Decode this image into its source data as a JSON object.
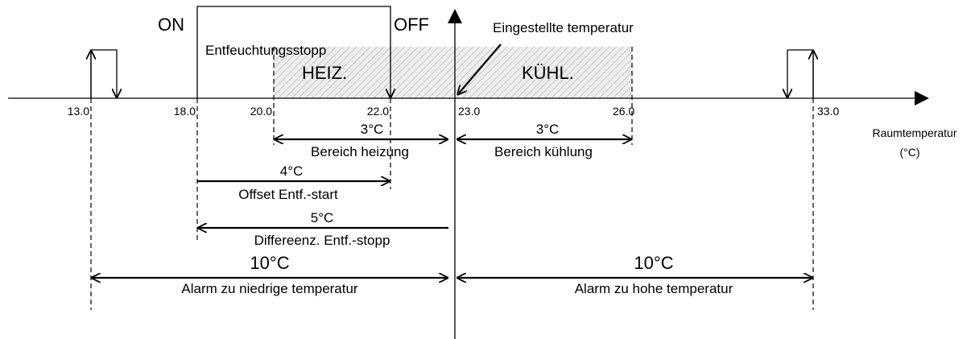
{
  "switch": {
    "on": "ON",
    "off": "OFF"
  },
  "setpoint_label": "Eingestellte temperatur",
  "zones": {
    "stop_label": "Entfeuchtungsstopp",
    "heating": "HEIZ.",
    "cooling": "KÜHL."
  },
  "axis": {
    "ticks": [
      "13.0",
      "18.0",
      "20.0",
      "22.0",
      "23.0",
      "26.0",
      "33.0"
    ],
    "label": "Raumtemperatur",
    "unit": "(°C)"
  },
  "spans": [
    {
      "value": "3°C",
      "label": "Bereich heizung"
    },
    {
      "value": "3°C",
      "label": "Bereich kühlung"
    },
    {
      "value": "4°C",
      "label": "Offset Entf.-start"
    },
    {
      "value": "5°C",
      "label": "Differeenz. Entf.-stopp"
    },
    {
      "value": "10°C",
      "label": "Alarm zu niedrige temperatur"
    },
    {
      "value": "10°C",
      "label": "Alarm zu hohe temperatur"
    }
  ]
}
